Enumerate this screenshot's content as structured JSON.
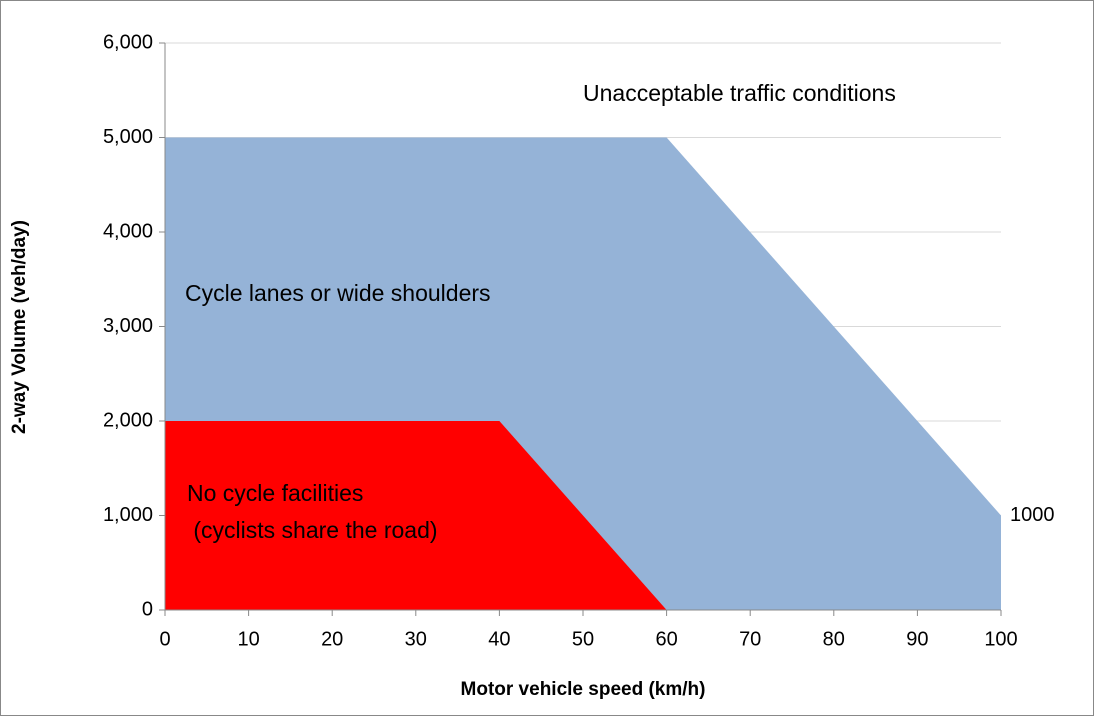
{
  "chart_data": {
    "type": "area",
    "xlabel": "Motor vehicle speed (km/h)",
    "ylabel": "2-way Volume (veh/day)",
    "series": [
      {
        "name": "Cycle lanes or wide shoulders",
        "color": "#95b3d7",
        "x": [
          0,
          60,
          100
        ],
        "values": [
          5000,
          5000,
          1000
        ],
        "value_labels": [
          null,
          null,
          "1000"
        ]
      },
      {
        "name": "No cycle facilities",
        "color": "#ff0000",
        "x": [
          0,
          40,
          60
        ],
        "values": [
          2000,
          2000,
          0
        ]
      }
    ],
    "annotations": [
      "Unacceptable traffic conditions",
      "Cycle lanes or wide shoulders",
      "No cycle facilities",
      " (cyclists share the road)"
    ],
    "xlim": [
      0,
      100
    ],
    "xticks": [
      0,
      10,
      20,
      30,
      40,
      50,
      60,
      70,
      80,
      90,
      100
    ],
    "ylim": [
      0,
      6000
    ],
    "yticks": [
      0,
      {
        "value": 1000,
        "label": "1,000"
      },
      {
        "value": 2000,
        "label": "2,000"
      },
      {
        "value": 3000,
        "label": "3,000"
      },
      {
        "value": 4000,
        "label": "4,000"
      },
      {
        "value": 5000,
        "label": "5,000"
      },
      {
        "value": 6000,
        "label": "6,000"
      }
    ],
    "grid": true
  }
}
